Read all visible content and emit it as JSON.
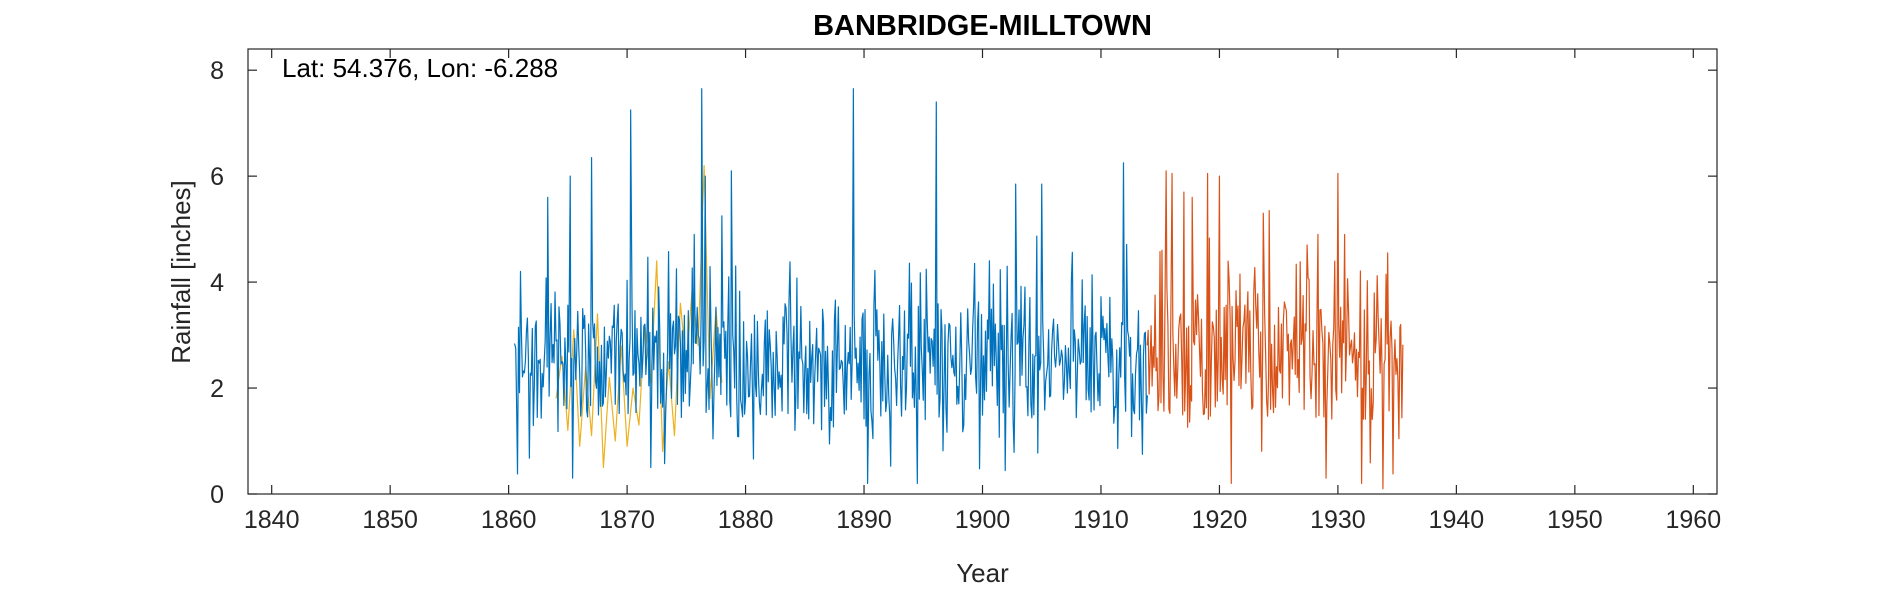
{
  "chart_data": {
    "type": "line",
    "title": "BANBRIDGE-MILLTOWN",
    "xlabel": "Year",
    "ylabel": "Rainfall [inches]",
    "annotation": "Lat: 54.376, Lon: -6.288",
    "xlim": [
      1838,
      1962
    ],
    "ylim": [
      0,
      8.4
    ],
    "xticks": [
      1840,
      1850,
      1860,
      1870,
      1880,
      1890,
      1900,
      1910,
      1920,
      1930,
      1940,
      1950,
      1960
    ],
    "yticks": [
      0,
      2,
      4,
      6,
      8
    ],
    "grid": false,
    "colors": {
      "axis": "#262626",
      "text": "#262626"
    },
    "series": [
      {
        "color": "#EDB120",
        "x_start": 1864.0,
        "x_end": 1878.0,
        "points": [
          [
            1864.0,
            1.8
          ],
          [
            1864.5,
            2.6
          ],
          [
            1865.0,
            1.2
          ],
          [
            1865.5,
            3.1
          ],
          [
            1866.0,
            0.9
          ],
          [
            1866.5,
            2.4
          ],
          [
            1867.0,
            1.1
          ],
          [
            1867.5,
            3.4
          ],
          [
            1868.0,
            0.5
          ],
          [
            1868.5,
            2.2
          ],
          [
            1869.0,
            1.0
          ],
          [
            1869.5,
            2.8
          ],
          [
            1870.0,
            0.9
          ],
          [
            1870.5,
            2.0
          ],
          [
            1871.0,
            1.3
          ],
          [
            1871.5,
            3.2
          ],
          [
            1872.0,
            2.1
          ],
          [
            1872.5,
            4.4
          ],
          [
            1873.0,
            0.8
          ],
          [
            1873.5,
            2.5
          ],
          [
            1874.0,
            1.1
          ],
          [
            1874.5,
            3.6
          ],
          [
            1875.0,
            2.4
          ],
          [
            1875.5,
            3.9
          ],
          [
            1876.0,
            2.8
          ],
          [
            1876.5,
            6.2
          ],
          [
            1877.0,
            1.8
          ],
          [
            1877.5,
            3.5
          ],
          [
            1878.0,
            2.1
          ]
        ]
      },
      {
        "color": "#0072BD",
        "x_start": 1860.5,
        "x_end": 1913.9,
        "peaks": [
          [
            1860.6,
            2.75
          ],
          [
            1860.75,
            0.38
          ],
          [
            1861.0,
            4.2
          ],
          [
            1863.3,
            5.6
          ],
          [
            1865.2,
            6.0
          ],
          [
            1865.4,
            0.3
          ],
          [
            1867.0,
            6.35
          ],
          [
            1870.3,
            7.25
          ],
          [
            1872.0,
            0.5
          ],
          [
            1876.3,
            7.65
          ],
          [
            1876.6,
            6.0
          ],
          [
            1878.0,
            5.25
          ],
          [
            1878.8,
            6.1
          ],
          [
            1889.1,
            7.65
          ],
          [
            1890.3,
            0.2
          ],
          [
            1894.5,
            0.2
          ],
          [
            1896.1,
            7.4
          ],
          [
            1902.8,
            5.85
          ],
          [
            1905.0,
            5.85
          ],
          [
            1911.9,
            6.25
          ],
          [
            1913.5,
            0.75
          ]
        ],
        "mean": 2.5
      },
      {
        "color": "#D95319",
        "x_start": 1913.9,
        "x_end": 1935.5,
        "peaks": [
          [
            1915.5,
            6.1
          ],
          [
            1916.0,
            6.05
          ],
          [
            1917.0,
            5.7
          ],
          [
            1917.7,
            5.6
          ],
          [
            1919.0,
            6.05
          ],
          [
            1920.0,
            6.0
          ],
          [
            1921.0,
            0.2
          ],
          [
            1923.7,
            5.3
          ],
          [
            1924.2,
            5.35
          ],
          [
            1929.0,
            0.3
          ],
          [
            1930.0,
            6.05
          ],
          [
            1932.0,
            0.2
          ],
          [
            1933.8,
            0.1
          ],
          [
            1934.2,
            4.55
          ],
          [
            1935.3,
            3.2
          ]
        ],
        "mean": 2.5
      }
    ]
  }
}
